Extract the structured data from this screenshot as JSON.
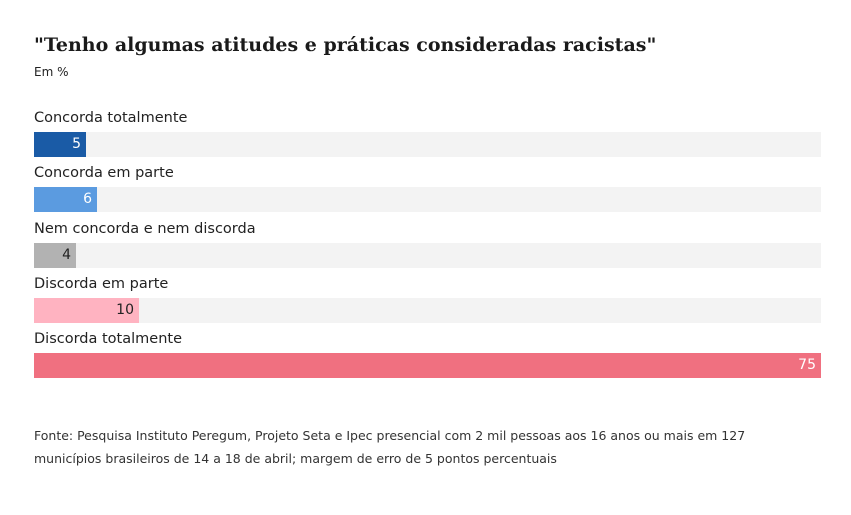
{
  "header": {
    "title": "\"Tenho algumas atitudes e práticas consideradas racistas\"",
    "subtitle": "Em %"
  },
  "chart_data": {
    "type": "bar",
    "orientation": "horizontal",
    "title": "\"Tenho algumas atitudes e práticas consideradas racistas\"",
    "subtitle": "Em %",
    "categories": [
      "Concorda totalmente",
      "Concorda em parte",
      "Nem concorda e nem discorda",
      "Discorda em parte",
      "Discorda totalmente"
    ],
    "values": [
      5,
      6,
      4,
      10,
      75
    ],
    "colors": [
      "#1a5ba6",
      "#5b9be0",
      "#b2b2b2",
      "#ffb3c1",
      "#f07080"
    ],
    "value_text_colors": [
      "#ffffff",
      "#ffffff",
      "#222222",
      "#222222",
      "#ffffff"
    ],
    "track_color": "#f3f3f3",
    "xlim": [
      0,
      75
    ],
    "grid": false
  },
  "footer": {
    "source": "Fonte: Pesquisa Instituto Peregum, Projeto Seta e Ipec presencial com 2 mil pessoas aos 16 anos ou mais em 127 municípios brasileiros de 14 a 18 de abril; margem de erro de 5 pontos percentuais"
  }
}
